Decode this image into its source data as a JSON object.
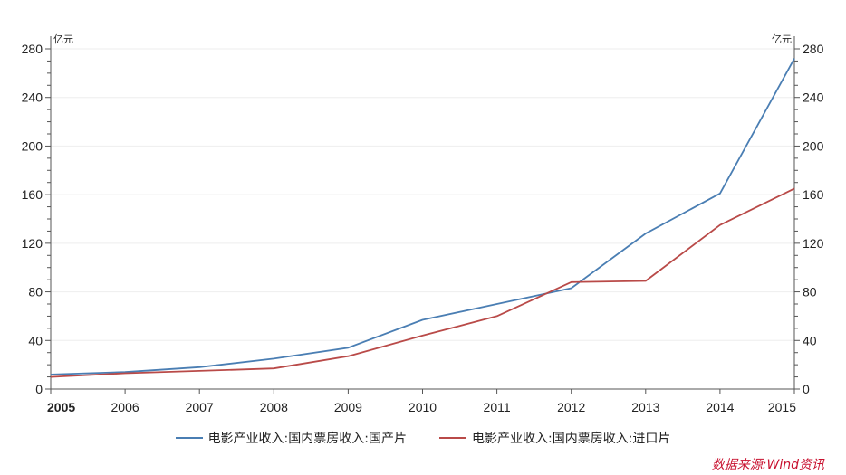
{
  "chart_data": {
    "type": "line",
    "x": [
      "2005",
      "2006",
      "2007",
      "2008",
      "2009",
      "2010",
      "2011",
      "2012",
      "2013",
      "2014",
      "2015"
    ],
    "series": [
      {
        "name": "电影产业收入:国内票房收入:国产片",
        "color": "#4a7eb3",
        "values": [
          12,
          14,
          18,
          25,
          34,
          57,
          70,
          83,
          128,
          161,
          272
        ]
      },
      {
        "name": "电影产业收入:国内票房收入:进口片",
        "color": "#b94a48",
        "values": [
          10,
          13,
          15,
          17,
          27,
          44,
          60,
          88,
          89,
          135,
          165
        ]
      }
    ],
    "y_left": {
      "unit": "亿元",
      "min": 0,
      "max": 280,
      "ticks": [
        0,
        40,
        80,
        120,
        160,
        200,
        240,
        280
      ]
    },
    "y_right": {
      "unit": "亿元",
      "min": 0,
      "max": 280,
      "ticks": [
        0,
        40,
        80,
        120,
        160,
        200,
        240,
        280
      ]
    },
    "grid": true
  },
  "source": "数据来源:Wind资讯"
}
